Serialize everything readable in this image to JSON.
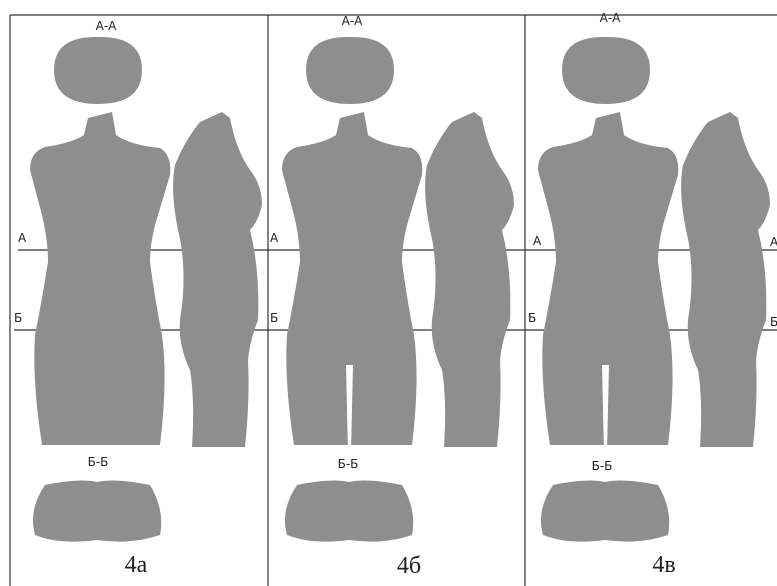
{
  "panels": [
    {
      "section_top": "А-А",
      "line_a": "А",
      "line_b": "Б",
      "section_bottom": "Б-Б",
      "caption": "4а"
    },
    {
      "section_top": "А-А",
      "line_a": "А",
      "line_b": "Б",
      "section_bottom": "Б-Б",
      "caption": "4б"
    },
    {
      "section_top": "А-А",
      "line_a": "А",
      "line_b": "Б",
      "section_bottom": "Б-Б",
      "caption": "4в"
    }
  ],
  "edge_labels": {
    "line_a": "А",
    "line_b": "Б"
  }
}
